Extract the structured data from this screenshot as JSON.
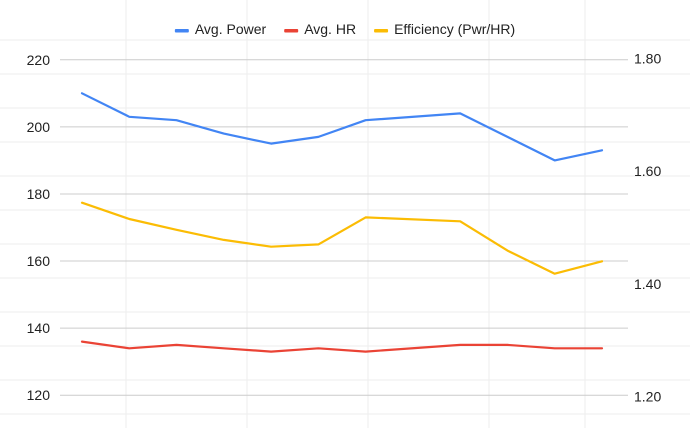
{
  "chart_data": {
    "type": "line",
    "title": "",
    "legend_position": "top",
    "grid": true,
    "x": [
      1,
      2,
      3,
      4,
      5,
      6,
      7,
      8,
      9,
      10,
      11,
      12
    ],
    "left_axis": {
      "range": [
        115,
        225
      ],
      "ticks": [
        120,
        140,
        160,
        180,
        200,
        220
      ],
      "tick_labels": [
        "120",
        "140",
        "160",
        "180",
        "200",
        "220"
      ]
    },
    "right_axis": {
      "range": [
        1.1727,
        1.8273
      ],
      "ticks": [
        1.2,
        1.4,
        1.6,
        1.8
      ],
      "tick_labels": [
        "1.20",
        "1.40",
        "1.60",
        "1.80"
      ]
    },
    "series": [
      {
        "name": "Avg. Power",
        "axis": "left",
        "color": "#4285f4",
        "values": [
          210,
          203,
          202,
          198,
          195,
          197,
          202,
          null,
          204,
          197,
          190,
          193
        ]
      },
      {
        "name": "Avg. HR",
        "axis": "left",
        "color": "#ea4335",
        "values": [
          136,
          134,
          135,
          134,
          133,
          134,
          133,
          null,
          135,
          135,
          134,
          134
        ]
      },
      {
        "name": "Efficiency (Pwr/HR)",
        "axis": "right",
        "color": "#fbbc04",
        "values": [
          1.544,
          1.515,
          1.496,
          1.478,
          1.466,
          1.47,
          1.518,
          null,
          1.511,
          1.459,
          1.418,
          1.44
        ]
      }
    ]
  }
}
